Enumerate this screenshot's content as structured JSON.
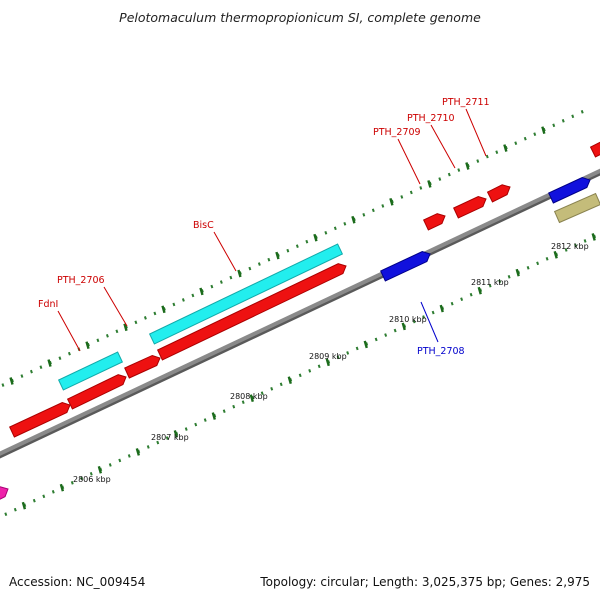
{
  "title": "Pelotomaculum thermopropionicum SI, complete genome",
  "footer": {
    "accession": "Accession: NC_009454",
    "topology": "Topology: circular; Length: 3,025,375 bp; Genes: 2,975"
  },
  "colors": {
    "backbone": "#8a8a8a",
    "dots": "#2e7d32",
    "red_label": "#cc0000",
    "blue_label": "#0000cc"
  },
  "ticks": [
    {
      "label": "2806 kbp",
      "kbp": 2806
    },
    {
      "label": "2807 kbp",
      "kbp": 2807
    },
    {
      "label": "2808 kbp",
      "kbp": 2808
    },
    {
      "label": "2809 kbp",
      "kbp": 2809
    },
    {
      "label": "2810 kbp",
      "kbp": 2810
    },
    {
      "label": "2811 kbp",
      "kbp": 2811
    },
    {
      "label": "2812 kbp",
      "kbp": 2812
    }
  ],
  "gene_labels": [
    {
      "name": "FdnI",
      "color": "red"
    },
    {
      "name": "PTH_2706",
      "color": "red"
    },
    {
      "name": "BisC",
      "color": "red"
    },
    {
      "name": "PTH_2709",
      "color": "red"
    },
    {
      "name": "PTH_2710",
      "color": "red"
    },
    {
      "name": "PTH_2711",
      "color": "red"
    },
    {
      "name": "PTH_2708",
      "color": "blue"
    }
  ]
}
